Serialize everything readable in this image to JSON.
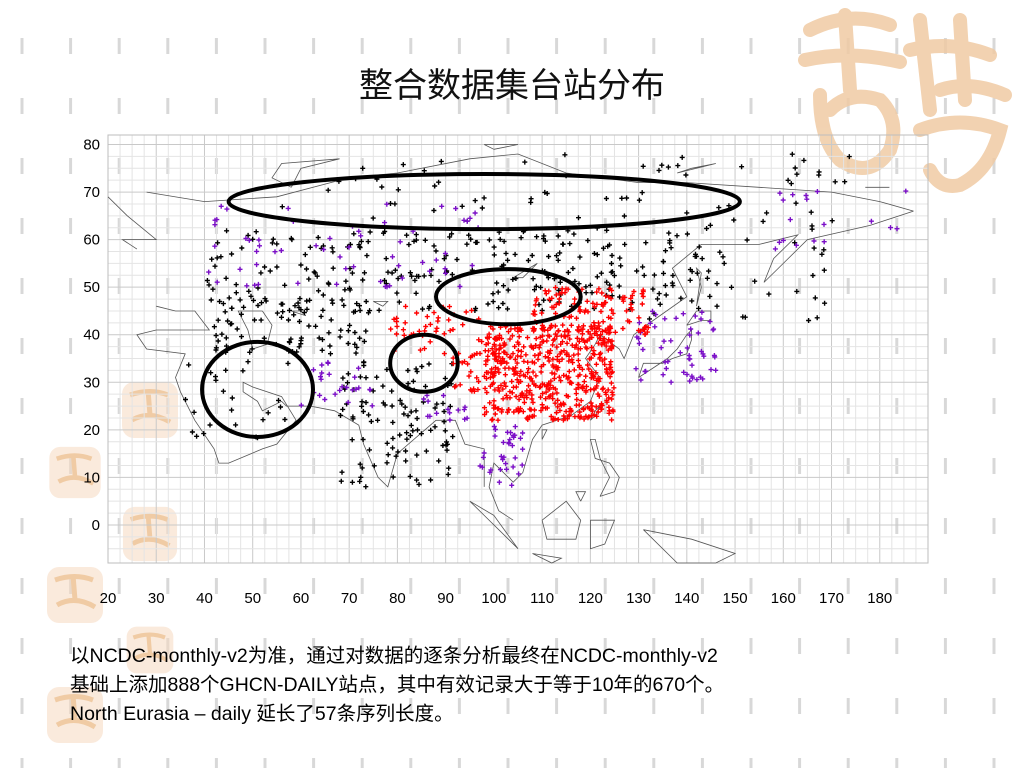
{
  "slide": {
    "title": "整合数据集台站分布",
    "caption_lines": [
      "以NCDC-monthly-v2为准，通过对数据的逐条分析最终在NCDC-monthly-v2",
      "基础上添加888个GHCN-DAILY站点，其中有效记录大于等于10年的670个。",
      "North Eurasia – daily 延长了57条序列长度。"
    ]
  },
  "map": {
    "x_ticks": [
      "20",
      "30",
      "40",
      "50",
      "60",
      "70",
      "80",
      "90",
      "100",
      "110",
      "120",
      "130",
      "140",
      "150",
      "160",
      "170",
      "180"
    ],
    "y_ticks": [
      "80",
      "70",
      "60",
      "50",
      "40",
      "30",
      "20",
      "10",
      "0"
    ],
    "lon_range": [
      20,
      190
    ],
    "lat_range": [
      -8,
      82
    ],
    "station_colors": {
      "ncdc_monthly": "#000000",
      "ghcn_daily_added": "#7b0fc7",
      "china": "#ff0000"
    },
    "highlight_circles": [
      {
        "label": "north-siberia",
        "center_lon": 98,
        "center_lat": 68,
        "rx_deg": 53,
        "ry_deg": 5.8
      },
      {
        "label": "mongolia",
        "center_lon": 103,
        "center_lat": 48,
        "rx_deg": 15,
        "ry_deg": 5.8
      },
      {
        "label": "tibet",
        "center_lon": 85.5,
        "center_lat": 34,
        "rx_deg": 7,
        "ry_deg": 6
      },
      {
        "label": "arabia",
        "center_lon": 51,
        "center_lat": 28.5,
        "rx_deg": 11.5,
        "ry_deg": 10
      }
    ],
    "station_regions": [
      {
        "color": "ncdc_monthly",
        "count": 260,
        "lon": [
          40,
          145
        ],
        "lat": [
          45,
          62
        ]
      },
      {
        "color": "ncdc_monthly",
        "count": 70,
        "lon": [
          55,
          175
        ],
        "lat": [
          62,
          78
        ]
      },
      {
        "color": "ncdc_monthly",
        "count": 80,
        "lon": [
          42,
          75
        ],
        "lat": [
          36,
          48
        ]
      },
      {
        "color": "ncdc_monthly",
        "count": 110,
        "lon": [
          68,
          92
        ],
        "lat": [
          8,
          35
        ]
      },
      {
        "color": "ncdc_monthly",
        "count": 25,
        "lon": [
          36,
          58
        ],
        "lat": [
          17,
          35
        ]
      },
      {
        "color": "ncdc_monthly",
        "count": 35,
        "lon": [
          130,
          170
        ],
        "lat": [
          42,
          62
        ]
      },
      {
        "color": "ghcn_daily_added",
        "count": 60,
        "lon": [
          40,
          100
        ],
        "lat": [
          50,
          68
        ]
      },
      {
        "color": "ghcn_daily_added",
        "count": 55,
        "lon": [
          128,
          146
        ],
        "lat": [
          30,
          45
        ]
      },
      {
        "color": "ghcn_daily_added",
        "count": 35,
        "lon": [
          97,
          106
        ],
        "lat": [
          8,
          22
        ]
      },
      {
        "color": "ghcn_daily_added",
        "count": 25,
        "lon": [
          60,
          75
        ],
        "lat": [
          25,
          35
        ]
      },
      {
        "color": "ghcn_daily_added",
        "count": 18,
        "lon": [
          155,
          186
        ],
        "lat": [
          58,
          72
        ]
      },
      {
        "color": "ghcn_daily_added",
        "count": 15,
        "lon": [
          85,
          95
        ],
        "lat": [
          22,
          28
        ]
      },
      {
        "color": "china",
        "count": 520,
        "lon": [
          98,
          125
        ],
        "lat": [
          22,
          42
        ]
      },
      {
        "color": "china",
        "count": 110,
        "lon": [
          108,
          132
        ],
        "lat": [
          40,
          50
        ]
      },
      {
        "color": "china",
        "count": 45,
        "lon": [
          78,
          98
        ],
        "lat": [
          36,
          46
        ]
      },
      {
        "color": "china",
        "count": 25,
        "lon": [
          90,
          100
        ],
        "lat": [
          28,
          36
        ]
      }
    ]
  }
}
